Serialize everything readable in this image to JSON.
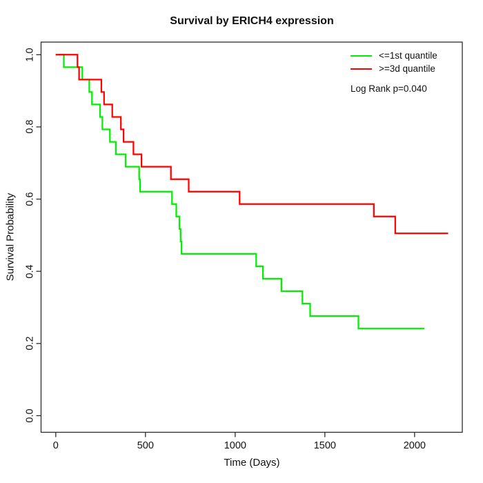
{
  "chart_data": {
    "type": "line",
    "subtype": "kaplan-meier-step",
    "title": "Survival by ERICH4 expression",
    "xlabel": "Time (Days)",
    "ylabel": "Survival Probability",
    "xlim": [
      -82,
      2266
    ],
    "ylim": [
      -0.046,
      1.035
    ],
    "x_ticks": [
      {
        "value": 0,
        "label": "0"
      },
      {
        "value": 500,
        "label": "500"
      },
      {
        "value": 1000,
        "label": "1000"
      },
      {
        "value": 1500,
        "label": "1500"
      },
      {
        "value": 2000,
        "label": "2000"
      }
    ],
    "y_ticks": [
      {
        "value": 0.0,
        "label": "0.0"
      },
      {
        "value": 0.2,
        "label": "0.2"
      },
      {
        "value": 0.4,
        "label": "0.4"
      },
      {
        "value": 0.6,
        "label": "0.6"
      },
      {
        "value": 0.8,
        "label": "0.8"
      },
      {
        "value": 1.0,
        "label": "1.0"
      }
    ],
    "grid": false,
    "legend_position": "top-right",
    "annotation": "Log Rank p=0.040",
    "axis_color": "#2b2b2b",
    "series": [
      {
        "name": "<=1st quantile",
        "color": "#00ee00",
        "end": 2055,
        "points": [
          [
            0,
            1.0
          ],
          [
            45,
            0.9655
          ],
          [
            148,
            0.931
          ],
          [
            187,
            0.8966
          ],
          [
            202,
            0.8621
          ],
          [
            247,
            0.8276
          ],
          [
            260,
            0.7931
          ],
          [
            302,
            0.7586
          ],
          [
            335,
            0.7241
          ],
          [
            390,
            0.6897
          ],
          [
            465,
            0.6552
          ],
          [
            470,
            0.6207
          ],
          [
            648,
            0.5862
          ],
          [
            672,
            0.5517
          ],
          [
            690,
            0.5172
          ],
          [
            696,
            0.4828
          ],
          [
            701,
            0.4483
          ],
          [
            1117,
            0.4138
          ],
          [
            1155,
            0.3793
          ],
          [
            1258,
            0.3448
          ],
          [
            1375,
            0.3103
          ],
          [
            1418,
            0.2759
          ],
          [
            1687,
            0.2414
          ]
        ]
      },
      {
        "name": ">=3d quantile",
        "color": "#ff0000",
        "end": 2187,
        "points": [
          [
            0,
            1.0
          ],
          [
            121,
            0.9655
          ],
          [
            130,
            0.931
          ],
          [
            254,
            0.8966
          ],
          [
            269,
            0.8621
          ],
          [
            315,
            0.8276
          ],
          [
            363,
            0.7931
          ],
          [
            378,
            0.7586
          ],
          [
            433,
            0.7241
          ],
          [
            478,
            0.6897
          ],
          [
            642,
            0.6552
          ],
          [
            741,
            0.6207
          ],
          [
            1025,
            0.5862
          ],
          [
            1773,
            0.5517
          ],
          [
            1892,
            0.505
          ]
        ]
      }
    ]
  }
}
